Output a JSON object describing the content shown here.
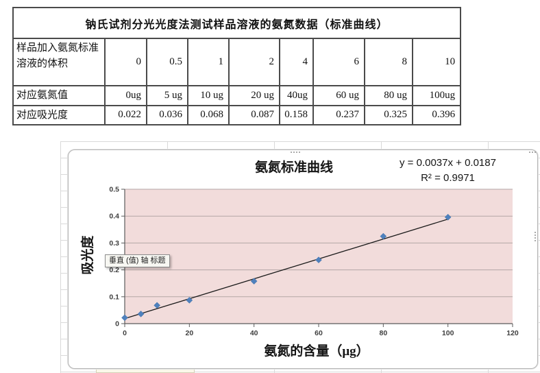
{
  "table": {
    "title": "钠氏试剂分光光度法测试样品溶液的氨氮数据（标准曲线）",
    "rows": [
      {
        "label": "样品加入氨氮标准溶液的体积",
        "values": [
          "0",
          "0.5",
          "1",
          "2",
          "4",
          "6",
          "8",
          "10"
        ]
      },
      {
        "label": "对应氨氮值",
        "values": [
          "0ug",
          "5 ug",
          "10 ug",
          "20 ug",
          "40ug",
          "60 ug",
          "80 ug",
          "100ug"
        ]
      },
      {
        "label": "对应吸光度",
        "values": [
          "0.022",
          "0.036",
          "0.068",
          "0.087",
          "0.158",
          "0.237",
          "0.325",
          "0.396"
        ]
      }
    ]
  },
  "chart_data": {
    "type": "scatter",
    "title": "氨氮标准曲线",
    "equation": "y = 0.0037x + 0.0187",
    "r_squared": "R² = 0.9971",
    "xlabel": "氨氮的含量（μg）",
    "ylabel": "吸光度",
    "x": [
      0,
      5,
      10,
      20,
      40,
      60,
      80,
      100
    ],
    "y": [
      0.022,
      0.036,
      0.068,
      0.087,
      0.158,
      0.237,
      0.325,
      0.396
    ],
    "xlim": [
      0,
      120
    ],
    "ylim": [
      0,
      0.5
    ],
    "x_ticks": [
      0,
      20,
      40,
      60,
      80,
      100,
      120
    ],
    "y_ticks": [
      0,
      0.1,
      0.2,
      0.3,
      0.4,
      0.5
    ],
    "trendline": {
      "slope": 0.0037,
      "intercept": 0.0187,
      "x_start": 0,
      "x_end": 100
    },
    "grid": true,
    "legend": "none",
    "point_color": "#4f81bd",
    "point_stroke": "#3a6ca8",
    "trendline_color": "#1a1a1a",
    "plot_bg": "#f2dcdb",
    "gridline_color": "#b3a6a5",
    "axis_color": "#5a5a5a",
    "tick_label_color": "#3f3f3f"
  },
  "tooltip": {
    "text": "垂直 (值) 轴 标题"
  }
}
